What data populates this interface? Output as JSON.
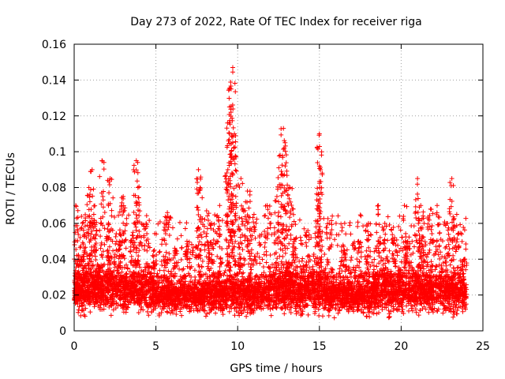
{
  "chart_data": {
    "type": "scatter",
    "title": "Day 273 of 2022, Rate Of TEC Index for receiver riga",
    "xlabel": "GPS time / hours",
    "ylabel": "ROTI / TECUs",
    "xlim": [
      0,
      25
    ],
    "ylim": [
      0,
      0.16
    ],
    "x_ticks": [
      "0",
      "5",
      "10",
      "15",
      "20",
      "25"
    ],
    "y_ticks": [
      "0",
      "0.02",
      "0.04",
      "0.06",
      "0.08",
      "0.1",
      "0.12",
      "0.14",
      "0.16"
    ],
    "grid": true,
    "marker": "+",
    "color": "#ff0000",
    "series": [
      {
        "x": [
          0.1,
          0.3,
          0.5,
          0.9,
          1.1,
          1.2,
          1.7,
          2.1,
          2.2,
          2.6,
          2.9,
          3.0,
          3.6,
          3.8,
          3.9,
          4.4,
          4.9,
          5.5,
          5.7,
          6.2,
          6.9,
          7.6,
          7.7,
          8.1,
          8.4,
          8.9,
          9.4,
          9.5,
          9.6,
          9.7,
          9.8,
          10.2,
          10.6,
          11.0,
          11.8,
          12.4,
          12.6,
          12.8,
          12.9,
          13.2,
          13.4,
          14.2,
          14.9,
          15.0,
          15.0,
          15.6,
          16.5,
          17.4,
          18.0,
          18.6,
          19.0,
          19.6,
          20.2,
          20.4,
          21.0,
          21.2,
          21.4,
          21.8,
          22.2,
          22.8,
          23.1,
          23.4,
          23.9
        ],
        "y": [
          0.07,
          0.04,
          0.06,
          0.08,
          0.09,
          0.065,
          0.095,
          0.06,
          0.085,
          0.05,
          0.07,
          0.075,
          0.055,
          0.095,
          0.08,
          0.06,
          0.045,
          0.06,
          0.066,
          0.045,
          0.05,
          0.09,
          0.08,
          0.067,
          0.06,
          0.07,
          0.09,
          0.125,
          0.135,
          0.147,
          0.11,
          0.085,
          0.078,
          0.065,
          0.07,
          0.075,
          0.098,
          0.113,
          0.105,
          0.08,
          0.068,
          0.055,
          0.07,
          0.11,
          0.092,
          0.06,
          0.045,
          0.05,
          0.06,
          0.07,
          0.06,
          0.052,
          0.07,
          0.05,
          0.085,
          0.07,
          0.06,
          0.068,
          0.07,
          0.06,
          0.085,
          0.065,
          0.04
        ]
      }
    ],
    "density_profile": {
      "x": [
        0,
        0.5,
        1,
        2,
        3,
        4,
        5,
        6,
        7,
        8,
        9,
        10,
        11,
        12,
        13,
        14,
        15,
        16,
        17,
        18,
        19,
        20,
        21,
        22,
        23,
        24
      ],
      "y_center": [
        0.022,
        0.023,
        0.024,
        0.024,
        0.023,
        0.023,
        0.021,
        0.02,
        0.02,
        0.02,
        0.021,
        0.022,
        0.02,
        0.022,
        0.023,
        0.022,
        0.023,
        0.021,
        0.019,
        0.021,
        0.023,
        0.023,
        0.022,
        0.022,
        0.022,
        0.021
      ],
      "y_spread": [
        0.008,
        0.01,
        0.011,
        0.011,
        0.01,
        0.01,
        0.009,
        0.008,
        0.008,
        0.008,
        0.009,
        0.01,
        0.009,
        0.01,
        0.011,
        0.01,
        0.011,
        0.009,
        0.008,
        0.01,
        0.011,
        0.011,
        0.01,
        0.01,
        0.01,
        0.009
      ]
    }
  }
}
